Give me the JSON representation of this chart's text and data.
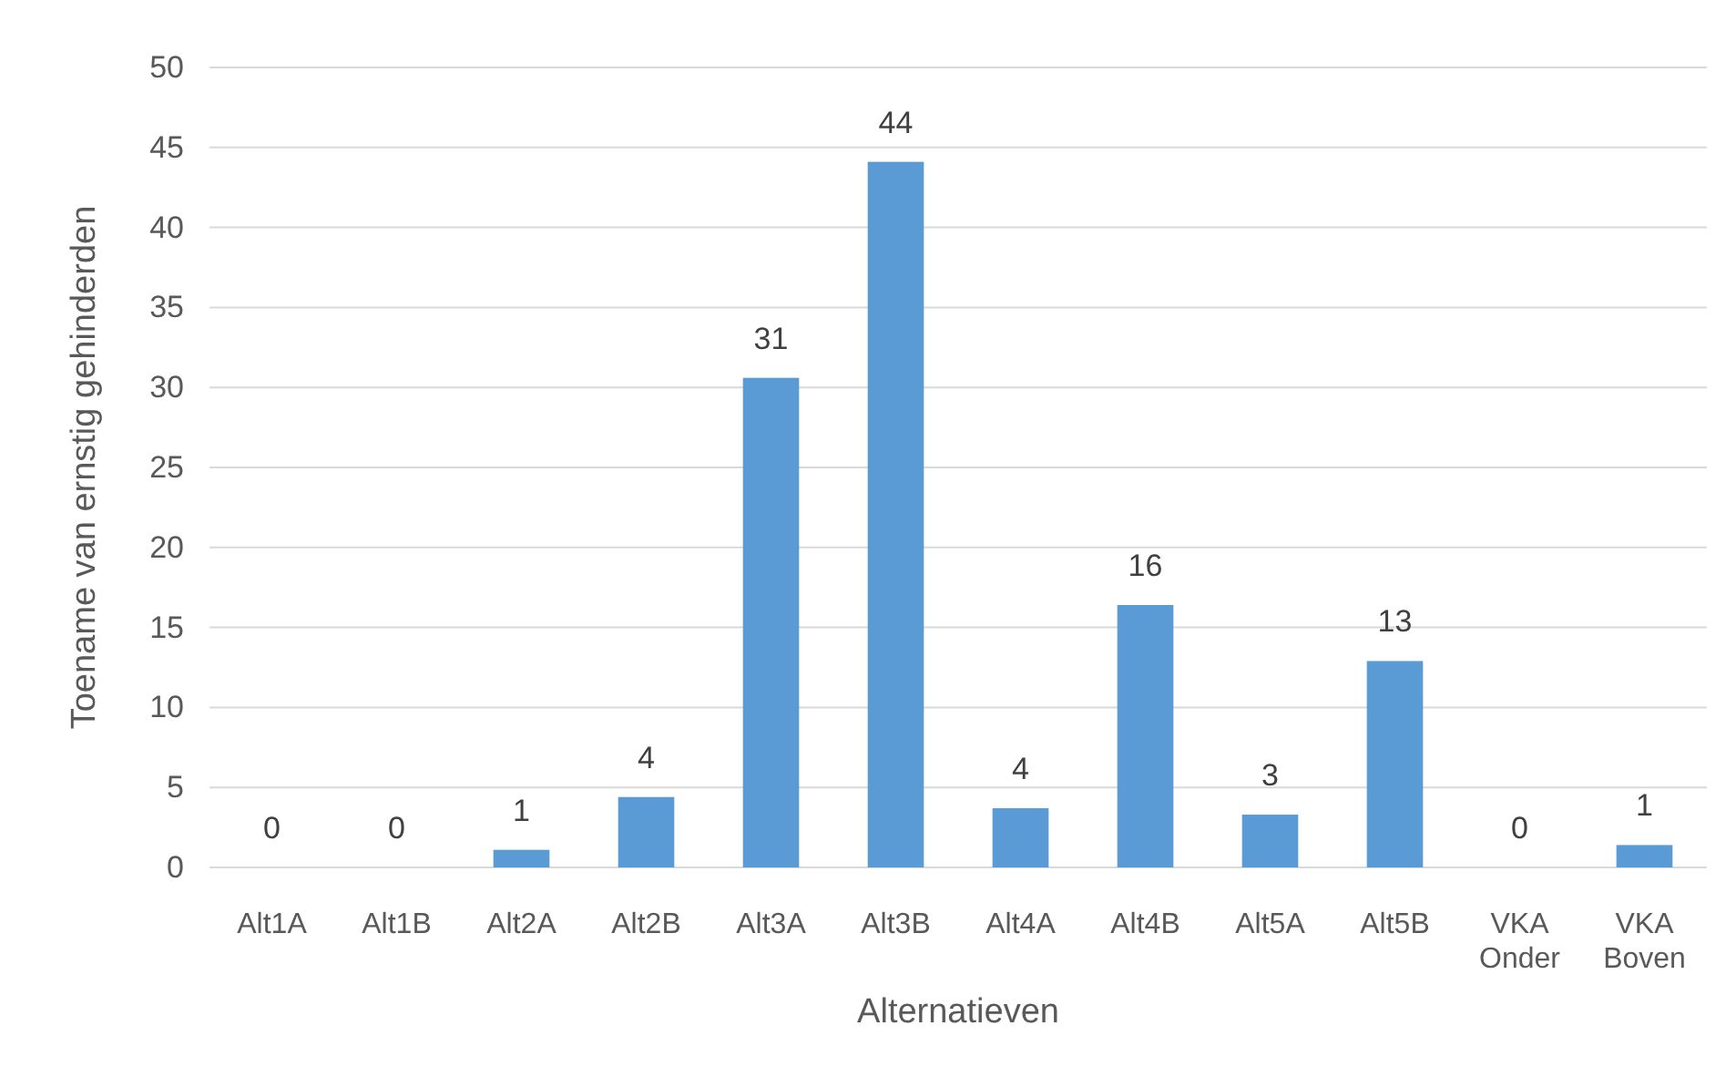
{
  "chart_data": {
    "type": "bar",
    "xlabel": "Alternatieven",
    "ylabel": "Toename van ernstig gehinderden",
    "categories": [
      "Alt1A",
      "Alt1B",
      "Alt2A",
      "Alt2B",
      "Alt3A",
      "Alt3B",
      "Alt4A",
      "Alt4B",
      "Alt5A",
      "Alt5B",
      "VKA Onder",
      "VKA Boven"
    ],
    "values": [
      0,
      0,
      1.1,
      4.4,
      30.6,
      44.1,
      3.7,
      16.4,
      3.3,
      12.9,
      0,
      1.4
    ],
    "value_labels": [
      "0",
      "0",
      "1",
      "4",
      "31",
      "44",
      "4",
      "16",
      "3",
      "13",
      "0",
      "1"
    ],
    "color": "#5b9bd5",
    "ylim": [
      0,
      50
    ],
    "yticks": [
      0,
      5,
      10,
      15,
      20,
      25,
      30,
      35,
      40,
      45,
      50
    ],
    "grid": "y"
  }
}
